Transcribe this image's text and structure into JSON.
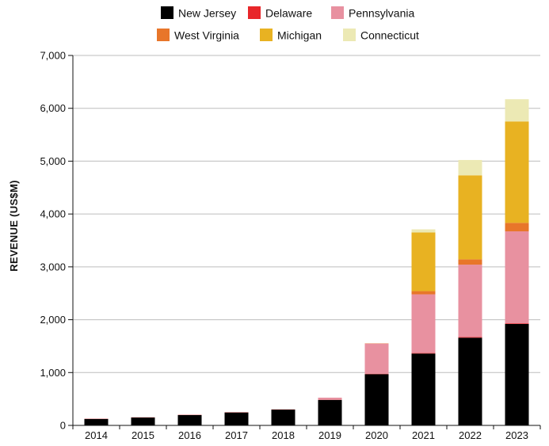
{
  "chart_data": {
    "type": "bar",
    "stacked": true,
    "title": "",
    "xlabel": "",
    "ylabel": "REVENUE (US$M)",
    "ylim": [
      0,
      7000
    ],
    "yticks": [
      0,
      1000,
      2000,
      3000,
      4000,
      5000,
      6000,
      7000
    ],
    "ytick_labels": [
      "0",
      "1,000",
      "2,000",
      "3,000",
      "4,000",
      "5,000",
      "6,000",
      "7,000"
    ],
    "grid": true,
    "legend_position": "top-center",
    "categories": [
      "2014",
      "2015",
      "2016",
      "2017",
      "2018",
      "2019",
      "2020",
      "2021",
      "2022",
      "2023"
    ],
    "series": [
      {
        "name": "New Jersey",
        "color": "#000000",
        "values": [
          122,
          149,
          196,
          245,
          299,
          482,
          970,
          1360,
          1660,
          1920
        ]
      },
      {
        "name": "Delaware",
        "color": "#e8262a",
        "values": [
          4,
          4,
          4,
          4,
          4,
          3,
          8,
          10,
          12,
          12
        ]
      },
      {
        "name": "Pennsylvania",
        "color": "#e891a0",
        "values": [
          0,
          0,
          0,
          0,
          0,
          40,
          570,
          1110,
          1370,
          1740
        ]
      },
      {
        "name": "West Virginia",
        "color": "#e8762a",
        "values": [
          0,
          0,
          0,
          0,
          0,
          0,
          5,
          60,
          100,
          160
        ]
      },
      {
        "name": "Michigan",
        "color": "#e8b222",
        "values": [
          0,
          0,
          0,
          0,
          0,
          0,
          0,
          1110,
          1590,
          1920
        ]
      },
      {
        "name": "Connecticut",
        "color": "#ece9b4",
        "values": [
          0,
          0,
          0,
          0,
          0,
          0,
          0,
          60,
          290,
          420
        ]
      }
    ]
  }
}
